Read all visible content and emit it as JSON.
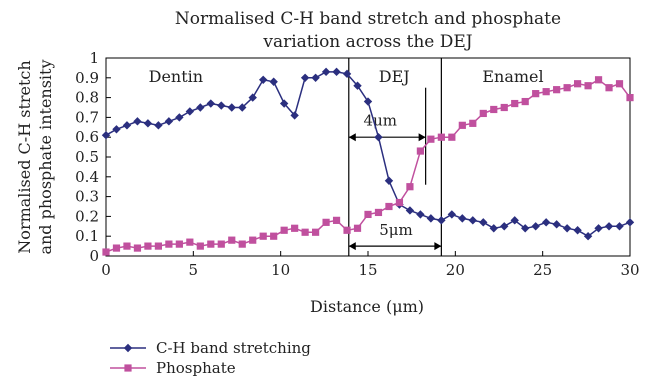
{
  "chart_data": {
    "type": "line",
    "title": [
      "Normalised C-H band stretch and phosphate",
      "variation across the DEJ"
    ],
    "xlabel": "Distance (μm)",
    "ylabel": [
      "Normalised C-H stretch",
      "and phosphate intensity"
    ],
    "xlim": [
      0,
      30
    ],
    "ylim": [
      0,
      1
    ],
    "xticks": [
      0,
      5,
      10,
      15,
      20,
      25,
      30
    ],
    "yticks": [
      0,
      0.1,
      0.2,
      0.3,
      0.4,
      0.5,
      0.6,
      0.7,
      0.8,
      0.9,
      1
    ],
    "ytick_labels": [
      "0",
      "0.1",
      "0.2",
      "0.3",
      "0.4",
      "0.5",
      "0.6",
      "0.7",
      "0.8",
      "0.9",
      "1"
    ],
    "grid": false,
    "legend_position": "bottom-left",
    "boundaries_x": [
      13.9,
      19.2
    ],
    "regions": [
      {
        "label": "Dentin",
        "x": 4
      },
      {
        "label": "DEJ",
        "x": 16.5
      },
      {
        "label": "Enamel",
        "x": 23.3
      }
    ],
    "annotations": [
      {
        "label": "4μm",
        "from": 13.9,
        "to": 18.3,
        "y": 0.6,
        "label_x": 15.7,
        "label_y": 0.66,
        "cap_line": {
          "x": 18.3,
          "y_from": 0.36,
          "y_to": 0.85
        }
      },
      {
        "label": "5μm",
        "from": 13.9,
        "to": 19.2,
        "y": 0.05,
        "label_x": 16.6,
        "label_y": 0.105
      }
    ],
    "series": [
      {
        "name": "C-H band stretching",
        "color": "#2b2f7f",
        "marker": "diamond",
        "x": [
          0,
          0.6,
          1.2,
          1.8,
          2.4,
          3.0,
          3.6,
          4.2,
          4.8,
          5.4,
          6.0,
          6.6,
          7.2,
          7.8,
          8.4,
          9.0,
          9.6,
          10.2,
          10.8,
          11.4,
          12.0,
          12.6,
          13.2,
          13.8,
          14.4,
          15.0,
          15.6,
          16.2,
          16.8,
          17.4,
          18.0,
          18.6,
          19.2,
          19.8,
          20.4,
          21.0,
          21.6,
          22.2,
          22.8,
          23.4,
          24.0,
          24.6,
          25.2,
          25.8,
          26.4,
          27.0,
          27.6,
          28.2,
          28.8,
          29.4,
          30.0
        ],
        "y": [
          0.61,
          0.64,
          0.66,
          0.68,
          0.67,
          0.66,
          0.68,
          0.7,
          0.73,
          0.75,
          0.77,
          0.76,
          0.75,
          0.75,
          0.8,
          0.89,
          0.88,
          0.77,
          0.71,
          0.9,
          0.9,
          0.93,
          0.93,
          0.92,
          0.86,
          0.78,
          0.6,
          0.38,
          0.26,
          0.23,
          0.21,
          0.19,
          0.18,
          0.21,
          0.19,
          0.18,
          0.17,
          0.14,
          0.15,
          0.18,
          0.14,
          0.15,
          0.17,
          0.16,
          0.14,
          0.13,
          0.1,
          0.14,
          0.15,
          0.15,
          0.17
        ]
      },
      {
        "name": "Phosphate",
        "color": "#c0509e",
        "marker": "square",
        "x": [
          0,
          0.6,
          1.2,
          1.8,
          2.4,
          3.0,
          3.6,
          4.2,
          4.8,
          5.4,
          6.0,
          6.6,
          7.2,
          7.8,
          8.4,
          9.0,
          9.6,
          10.2,
          10.8,
          11.4,
          12.0,
          12.6,
          13.2,
          13.8,
          14.4,
          15.0,
          15.6,
          16.2,
          16.8,
          17.4,
          18.0,
          18.6,
          19.2,
          19.8,
          20.4,
          21.0,
          21.6,
          22.2,
          22.8,
          23.4,
          24.0,
          24.6,
          25.2,
          25.8,
          26.4,
          27.0,
          27.6,
          28.2,
          28.8,
          29.4,
          30.0
        ],
        "y": [
          0.02,
          0.04,
          0.05,
          0.04,
          0.05,
          0.05,
          0.06,
          0.06,
          0.07,
          0.05,
          0.06,
          0.06,
          0.08,
          0.06,
          0.08,
          0.1,
          0.1,
          0.13,
          0.14,
          0.12,
          0.12,
          0.17,
          0.18,
          0.13,
          0.14,
          0.21,
          0.22,
          0.25,
          0.27,
          0.35,
          0.53,
          0.59,
          0.6,
          0.6,
          0.66,
          0.67,
          0.72,
          0.74,
          0.75,
          0.77,
          0.78,
          0.82,
          0.83,
          0.84,
          0.85,
          0.87,
          0.86,
          0.89,
          0.85,
          0.87,
          0.8
        ]
      }
    ]
  }
}
